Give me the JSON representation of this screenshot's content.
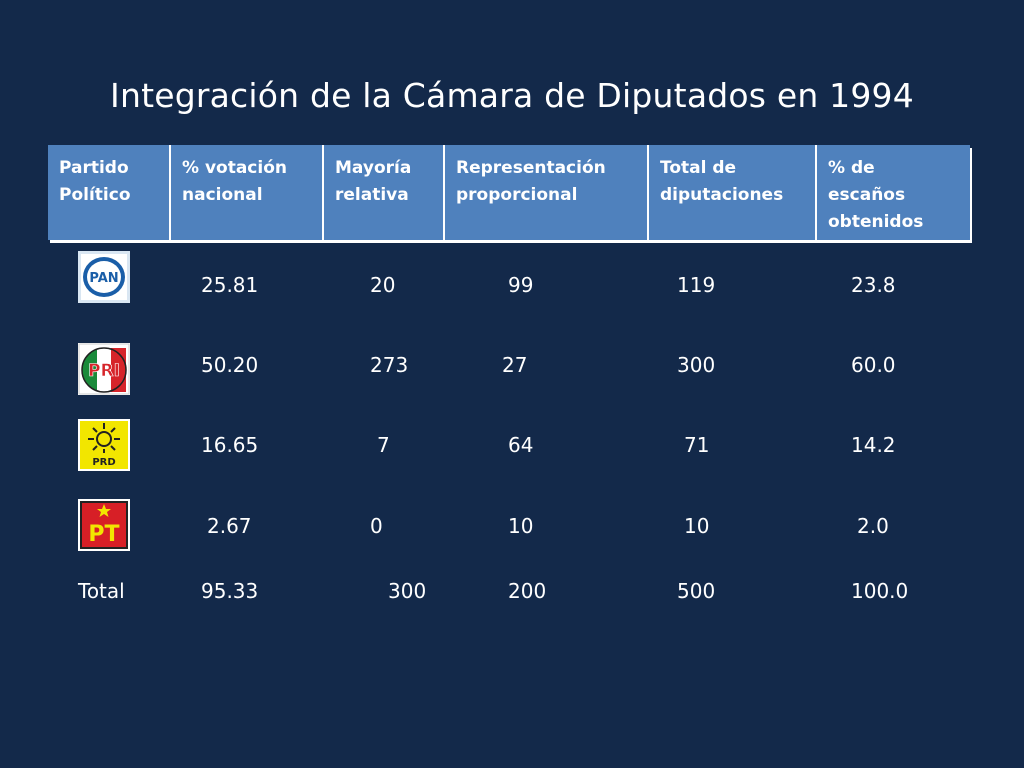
{
  "title": "Integración de la Cámara de Diputados en 1994",
  "headers": {
    "partido": "Partido\nPolítico",
    "votacion": "% votación\nnacional",
    "mayoria": "Mayoría\nrelativa",
    "representacion": "Representación\nproporcional",
    "total": "Total de\ndiputaciones",
    "escanos": "% de\nescaños\nobtenidos"
  },
  "rows": [
    {
      "party_logo": "pan-logo-icon",
      "logo_text": "PAN",
      "votacion": "25.81",
      "mayoria": "20",
      "representacion": "99",
      "total": "119",
      "escanos": "23.8"
    },
    {
      "party_logo": "pri-logo-icon",
      "logo_text": "PRI",
      "votacion": "50.20",
      "mayoria": "273",
      "representacion": "27",
      "total": "300",
      "escanos": "60.0"
    },
    {
      "party_logo": "prd-logo-icon",
      "logo_text": "PRD",
      "votacion": "16.65",
      "mayoria": "7",
      "representacion": "64",
      "total": "71",
      "escanos": "14.2"
    },
    {
      "party_logo": "pt-logo-icon",
      "logo_text": "PT",
      "votacion": "2.67",
      "mayoria": "0",
      "representacion": "10",
      "total": "10",
      "escanos": "2.0"
    }
  ],
  "totals": {
    "label": "Total",
    "votacion": "95.33",
    "mayoria": "300",
    "representacion": "200",
    "total": "500",
    "escanos": "100.0"
  },
  "colors": {
    "background": "#13294a",
    "header": "#4f81bd",
    "pan_blue": "#1a5ea8",
    "pri_red": "#d6242a",
    "pri_green": "#1a8a3a",
    "prd_yellow": "#f2e600",
    "pt_red": "#d71f26"
  }
}
